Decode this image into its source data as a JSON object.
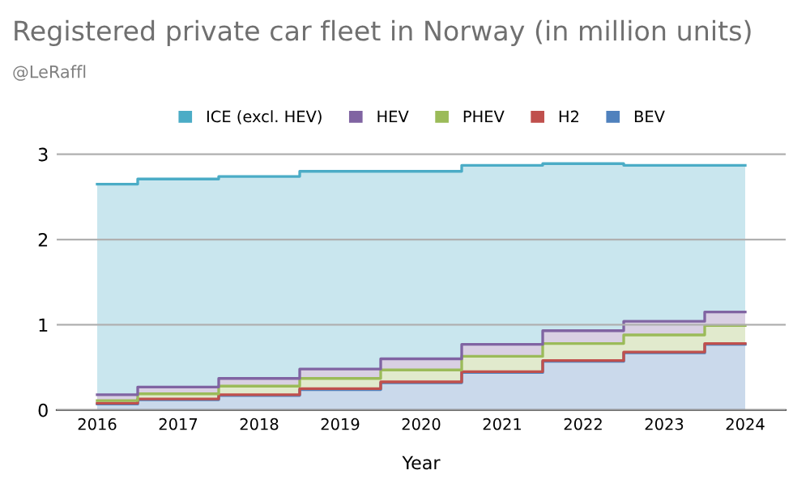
{
  "chart_data": {
    "type": "area",
    "title": "Registered private car fleet in Norway (in million units)",
    "subtitle": "@LeRaffl",
    "xlabel": "Year",
    "stacked": true,
    "categories": [
      "2016",
      "2017",
      "2018",
      "2019",
      "2020",
      "2021",
      "2022",
      "2023",
      "2024"
    ],
    "series": [
      {
        "name": "BEV",
        "color": "#4f81bd",
        "values": [
          0.07,
          0.12,
          0.17,
          0.24,
          0.32,
          0.44,
          0.57,
          0.67,
          0.77
        ]
      },
      {
        "name": "H2",
        "color": "#c0504d",
        "values": [
          0.01,
          0.01,
          0.01,
          0.01,
          0.01,
          0.01,
          0.01,
          0.01,
          0.01
        ]
      },
      {
        "name": "PHEV",
        "color": "#9bbb59",
        "values": [
          0.03,
          0.06,
          0.1,
          0.12,
          0.14,
          0.18,
          0.2,
          0.2,
          0.21
        ]
      },
      {
        "name": "HEV",
        "color": "#8064a2",
        "values": [
          0.07,
          0.08,
          0.09,
          0.11,
          0.13,
          0.14,
          0.15,
          0.16,
          0.16
        ]
      },
      {
        "name": "ICE (excl. HEV)",
        "color": "#4bacc6",
        "values": [
          2.47,
          2.44,
          2.37,
          2.32,
          2.2,
          2.1,
          1.96,
          1.83,
          1.72
        ]
      }
    ],
    "ylim": [
      0,
      3.05
    ],
    "yticks": [
      0,
      1,
      2,
      3
    ],
    "grid": "y",
    "legend": "top"
  }
}
